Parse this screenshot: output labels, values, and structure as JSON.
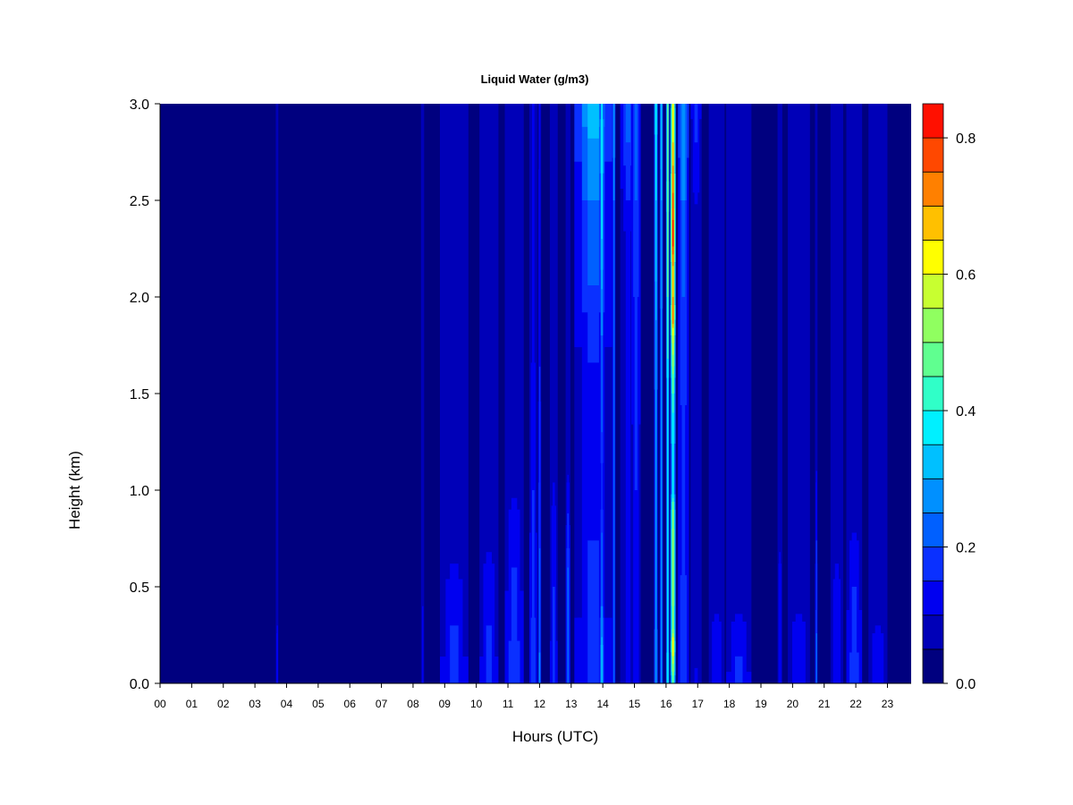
{
  "chart_data": {
    "type": "heatmap",
    "title": "Liquid Water (g/m3)",
    "xlabel": "Hours (UTC)",
    "ylabel": "Height (km)",
    "xlim": [
      0,
      23.75
    ],
    "ylim": [
      0,
      3.0
    ],
    "x_ticks": [
      {
        "value": 0,
        "label": "00"
      },
      {
        "value": 1,
        "label": "01"
      },
      {
        "value": 2,
        "label": "02"
      },
      {
        "value": 3,
        "label": "03"
      },
      {
        "value": 4,
        "label": "04"
      },
      {
        "value": 5,
        "label": "05"
      },
      {
        "value": 6,
        "label": "06"
      },
      {
        "value": 7,
        "label": "07"
      },
      {
        "value": 8,
        "label": "08"
      },
      {
        "value": 9,
        "label": "09"
      },
      {
        "value": 10,
        "label": "10"
      },
      {
        "value": 11,
        "label": "11"
      },
      {
        "value": 12,
        "label": "12"
      },
      {
        "value": 13,
        "label": "13"
      },
      {
        "value": 14,
        "label": "14"
      },
      {
        "value": 15,
        "label": "15"
      },
      {
        "value": 16,
        "label": "16"
      },
      {
        "value": 17,
        "label": "17"
      },
      {
        "value": 18,
        "label": "18"
      },
      {
        "value": 19,
        "label": "19"
      },
      {
        "value": 20,
        "label": "20"
      },
      {
        "value": 21,
        "label": "21"
      },
      {
        "value": 22,
        "label": "22"
      },
      {
        "value": 23,
        "label": "23"
      }
    ],
    "y_ticks": [
      {
        "value": 0.0,
        "label": "0.0"
      },
      {
        "value": 0.5,
        "label": "0.5"
      },
      {
        "value": 1.0,
        "label": "1.0"
      },
      {
        "value": 1.5,
        "label": "1.5"
      },
      {
        "value": 2.0,
        "label": "2.0"
      },
      {
        "value": 2.5,
        "label": "2.5"
      },
      {
        "value": 3.0,
        "label": "3.0"
      }
    ],
    "colorbar": {
      "range": [
        0,
        0.85
      ],
      "levels": [
        0.0,
        0.05,
        0.1,
        0.15,
        0.2,
        0.25,
        0.3,
        0.35,
        0.4,
        0.45,
        0.5,
        0.55,
        0.6,
        0.65,
        0.7,
        0.75,
        0.8,
        0.85
      ],
      "colors": [
        "#00007f",
        "#0000b8",
        "#0000f0",
        "#0a30ff",
        "#0060ff",
        "#0090ff",
        "#00c0ff",
        "#00f0ff",
        "#30ffc8",
        "#60ff90",
        "#90ff60",
        "#c8ff30",
        "#ffff00",
        "#ffc000",
        "#ff8000",
        "#ff4800",
        "#ff1000",
        "#c80000",
        "#7f0000"
      ],
      "ticks": [
        {
          "value": 0.0,
          "label": "0.0"
        },
        {
          "value": 0.2,
          "label": "0.2"
        },
        {
          "value": 0.4,
          "label": "0.4"
        },
        {
          "value": 0.6,
          "label": "0.6"
        },
        {
          "value": 0.8,
          "label": "0.8"
        }
      ]
    },
    "columns": [
      {
        "x": 3.7,
        "w": 0.08,
        "profile": [
          [
            0,
            0.1
          ],
          [
            0.3,
            0.06
          ],
          [
            0.35,
            0
          ]
        ]
      },
      {
        "x": 8.3,
        "w": 0.1,
        "profile": [
          [
            0,
            0.05
          ],
          [
            0.4,
            0.05
          ],
          [
            0.45,
            0
          ]
        ]
      },
      {
        "x": 9.3,
        "w": 0.9,
        "profile": [
          [
            0,
            0.12
          ],
          [
            0.3,
            0.1
          ],
          [
            0.6,
            0.06
          ],
          [
            0.7,
            0
          ]
        ]
      },
      {
        "x": 10.4,
        "w": 0.6,
        "profile": [
          [
            0,
            0.12
          ],
          [
            0.3,
            0.1
          ],
          [
            0.6,
            0.07
          ],
          [
            0.9,
            0
          ]
        ]
      },
      {
        "x": 11.2,
        "w": 0.6,
        "profile": [
          [
            0,
            0.15
          ],
          [
            0.4,
            0.12
          ],
          [
            0.9,
            0.07
          ],
          [
            1.1,
            0
          ]
        ]
      },
      {
        "x": 11.8,
        "w": 0.25,
        "profile": [
          [
            0,
            0.15
          ],
          [
            1.0,
            0.1
          ],
          [
            1.8,
            0.06
          ],
          [
            2.5,
            0.06
          ],
          [
            3.0,
            0.05
          ]
        ]
      },
      {
        "x": 12.0,
        "w": 0.1,
        "profile": [
          [
            0,
            0.22
          ],
          [
            0.5,
            0.16
          ],
          [
            1.3,
            0.12
          ],
          [
            2.0,
            0.08
          ],
          [
            3.0,
            0.06
          ]
        ]
      },
      {
        "x": 12.45,
        "w": 0.25,
        "profile": [
          [
            0,
            0.12
          ],
          [
            0.5,
            0.1
          ],
          [
            1.0,
            0.06
          ],
          [
            1.2,
            0
          ]
        ]
      },
      {
        "x": 12.9,
        "w": 0.15,
        "profile": [
          [
            0,
            0.18
          ],
          [
            0.6,
            0.15
          ],
          [
            1.0,
            0.08
          ],
          [
            1.2,
            0
          ]
        ]
      },
      {
        "x": 13.25,
        "w": 0.2,
        "profile": [
          [
            0,
            0.12
          ],
          [
            0.6,
            0.1
          ],
          [
            1.0,
            0
          ]
        ]
      },
      {
        "x": 13.7,
        "w": 1.2,
        "profile": [
          [
            0,
            0.12
          ],
          [
            1.5,
            0.08
          ],
          [
            2.3,
            0.18
          ],
          [
            2.7,
            0.22
          ],
          [
            3.0,
            0.3
          ]
        ]
      },
      {
        "x": 13.97,
        "w": 0.14,
        "profile": [
          [
            0,
            0.3
          ],
          [
            0.15,
            0.28
          ],
          [
            0.4,
            0.2
          ],
          [
            1.0,
            0.12
          ],
          [
            1.8,
            0.2
          ],
          [
            2.3,
            0.3
          ],
          [
            2.8,
            0.35
          ],
          [
            3.0,
            0.32
          ]
        ]
      },
      {
        "x": 14.35,
        "w": 0.1,
        "profile": [
          [
            0,
            0.2
          ],
          [
            0.4,
            0.15
          ],
          [
            1.5,
            0.15
          ],
          [
            2.5,
            0.2
          ],
          [
            3.0,
            0.25
          ]
        ]
      },
      {
        "x": 14.8,
        "w": 0.5,
        "profile": [
          [
            0,
            0.06
          ],
          [
            2.3,
            0.06
          ],
          [
            2.6,
            0.12
          ],
          [
            3.0,
            0.18
          ]
        ]
      },
      {
        "x": 15.05,
        "w": 0.3,
        "profile": [
          [
            0,
            0.08
          ],
          [
            1.0,
            0.1
          ],
          [
            2.5,
            0.15
          ],
          [
            3.0,
            0.2
          ]
        ]
      },
      {
        "x": 15.68,
        "w": 0.12,
        "profile": [
          [
            0,
            0.25
          ],
          [
            0.5,
            0.2
          ],
          [
            1.5,
            0.22
          ],
          [
            2.5,
            0.3
          ],
          [
            3.0,
            0.35
          ]
        ]
      },
      {
        "x": 15.85,
        "w": 0.1,
        "profile": [
          [
            0,
            0.22
          ],
          [
            0.5,
            0.2
          ],
          [
            1.5,
            0.2
          ],
          [
            2.5,
            0.25
          ],
          [
            3.0,
            0.3
          ]
        ]
      },
      {
        "x": 16.05,
        "w": 0.1,
        "profile": [
          [
            0,
            0.35
          ],
          [
            0.5,
            0.3
          ],
          [
            1.0,
            0.32
          ],
          [
            1.5,
            0.32
          ],
          [
            2.0,
            0.4
          ],
          [
            2.5,
            0.45
          ],
          [
            3.0,
            0.42
          ]
        ]
      },
      {
        "x": 16.22,
        "w": 0.17,
        "profile": [
          [
            0,
            0.4
          ],
          [
            0.2,
            0.6
          ],
          [
            0.3,
            0.45
          ],
          [
            0.6,
            0.5
          ],
          [
            0.9,
            0.45
          ],
          [
            1.0,
            0.3
          ],
          [
            1.1,
            0.32
          ],
          [
            1.4,
            0.35
          ],
          [
            1.8,
            0.55
          ],
          [
            1.9,
            0.7
          ],
          [
            2.1,
            0.6
          ],
          [
            2.3,
            0.78
          ],
          [
            2.5,
            0.72
          ],
          [
            2.8,
            0.6
          ],
          [
            3.0,
            0.55
          ]
        ]
      },
      {
        "x": 16.55,
        "w": 0.35,
        "profile": [
          [
            0,
            0.15
          ],
          [
            1.0,
            0.12
          ],
          [
            2.0,
            0.15
          ],
          [
            3.0,
            0.25
          ]
        ]
      },
      {
        "x": 16.95,
        "w": 0.35,
        "profile": [
          [
            0,
            0.06
          ],
          [
            0.5,
            0
          ],
          [
            2.3,
            0
          ],
          [
            2.6,
            0.08
          ],
          [
            3.0,
            0.12
          ]
        ]
      },
      {
        "x": 17.6,
        "w": 0.5,
        "profile": [
          [
            0,
            0.1
          ],
          [
            0.3,
            0.08
          ],
          [
            0.45,
            0
          ]
        ]
      },
      {
        "x": 18.3,
        "w": 0.8,
        "profile": [
          [
            0,
            0.12
          ],
          [
            0.3,
            0.08
          ],
          [
            0.45,
            0
          ]
        ]
      },
      {
        "x": 19.6,
        "w": 0.15,
        "profile": [
          [
            0,
            0.1
          ],
          [
            0.6,
            0.07
          ],
          [
            0.85,
            0
          ]
        ]
      },
      {
        "x": 20.2,
        "w": 0.7,
        "profile": [
          [
            0,
            0.1
          ],
          [
            0.3,
            0.08
          ],
          [
            0.45,
            0
          ]
        ]
      },
      {
        "x": 20.75,
        "w": 0.08,
        "profile": [
          [
            0,
            0.18
          ],
          [
            0.5,
            0.12
          ],
          [
            1.0,
            0.08
          ],
          [
            1.25,
            0
          ]
        ]
      },
      {
        "x": 21.4,
        "w": 0.4,
        "profile": [
          [
            0,
            0.1
          ],
          [
            0.5,
            0.08
          ],
          [
            0.8,
            0
          ]
        ]
      },
      {
        "x": 21.95,
        "w": 0.5,
        "profile": [
          [
            0,
            0.15
          ],
          [
            0.3,
            0.12
          ],
          [
            0.7,
            0.08
          ],
          [
            0.9,
            0
          ]
        ]
      },
      {
        "x": 22.7,
        "w": 0.6,
        "profile": [
          [
            0,
            0.1
          ],
          [
            0.3,
            0.06
          ],
          [
            0.35,
            0
          ]
        ]
      }
    ]
  }
}
